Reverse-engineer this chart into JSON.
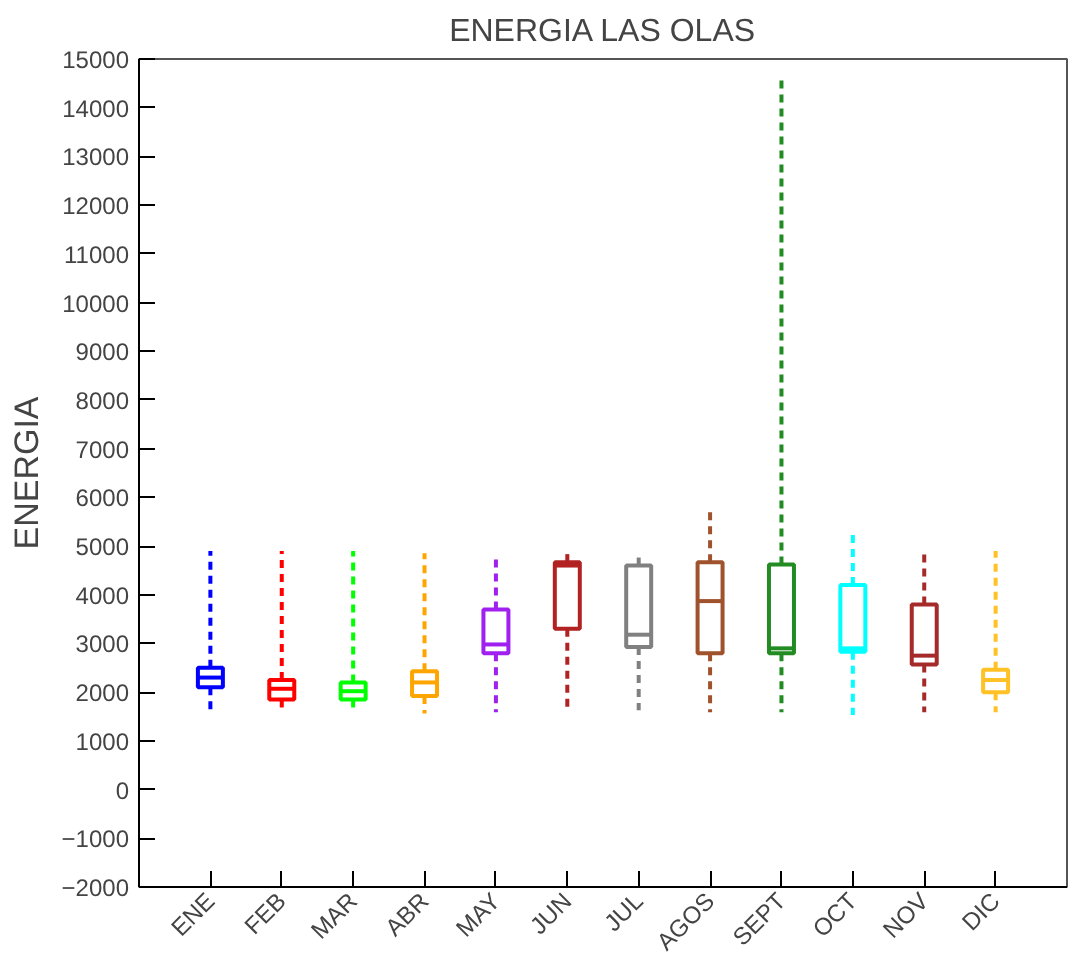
{
  "chart_data": {
    "type": "box",
    "title": "ENERGIA LAS OLAS",
    "ylabel": "ENERGIA",
    "categories": [
      "ENE",
      "FEB",
      "MAR",
      "ABR",
      "MAY",
      "JUN",
      "JUL",
      "AGOS",
      "SEPT",
      "OCT",
      "NOV",
      "DIC"
    ],
    "colors": [
      "#0000ff",
      "#ff0000",
      "#00ff00",
      "#ffa500",
      "#a020f0",
      "#b22222",
      "#808080",
      "#a0522d",
      "#228b22",
      "#00ffff",
      "#a52a2a",
      "#ffc125"
    ],
    "boxes": [
      {
        "low": 1560,
        "q1": 2100,
        "median": 2300,
        "q3": 2500,
        "high": 4900
      },
      {
        "low": 1630,
        "q1": 1850,
        "median": 2070,
        "q3": 2250,
        "high": 4900
      },
      {
        "low": 1590,
        "q1": 1850,
        "median": 2020,
        "q3": 2200,
        "high": 4900
      },
      {
        "low": 1560,
        "q1": 1920,
        "median": 2200,
        "q3": 2430,
        "high": 4850
      },
      {
        "low": 1590,
        "q1": 2800,
        "median": 2980,
        "q3": 3700,
        "high": 4800
      },
      {
        "low": 1630,
        "q1": 3300,
        "median": 4600,
        "q3": 4670,
        "high": 4850
      },
      {
        "low": 1630,
        "q1": 2930,
        "median": 3180,
        "q3": 4600,
        "high": 4850
      },
      {
        "low": 1590,
        "q1": 2800,
        "median": 3870,
        "q3": 4670,
        "high": 5700
      },
      {
        "low": 1590,
        "q1": 2800,
        "median": 2900,
        "q3": 4620,
        "high": 14600
      },
      {
        "low": 1530,
        "q1": 2830,
        "median": 2900,
        "q3": 4200,
        "high": 5230
      },
      {
        "low": 1590,
        "q1": 2570,
        "median": 2750,
        "q3": 3800,
        "high": 4950
      },
      {
        "low": 1590,
        "q1": 2000,
        "median": 2250,
        "q3": 2460,
        "high": 4900
      }
    ],
    "ylim": [
      -2000,
      15000
    ],
    "yticks": [
      -2000,
      -1000,
      0,
      1000,
      2000,
      3000,
      4000,
      5000,
      6000,
      7000,
      8000,
      9000,
      10000,
      11000,
      12000,
      13000,
      14000,
      15000
    ],
    "line_style": "dashed",
    "grid": false
  }
}
